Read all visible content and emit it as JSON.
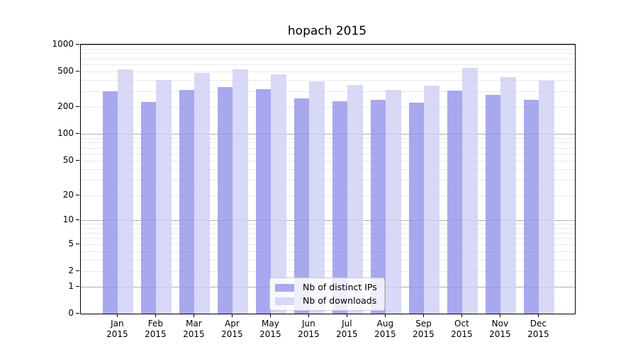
{
  "chart_data": {
    "type": "bar",
    "title": "hopach 2015",
    "categories": [
      "Jan 2015",
      "Feb 2015",
      "Mar 2015",
      "Apr 2015",
      "May 2015",
      "Jun 2015",
      "Jul 2015",
      "Aug 2015",
      "Sep 2015",
      "Oct 2015",
      "Nov 2015",
      "Dec 2015"
    ],
    "series": [
      {
        "name": "Nb of distinct IPs",
        "color": "#a8a8ef",
        "fill": "rgba(146,146,235,0.8)",
        "values": [
          300,
          230,
          312,
          334,
          320,
          250,
          234,
          242,
          224,
          308,
          277,
          242
        ]
      },
      {
        "name": "Nb of downloads",
        "color": "#d8d8f7",
        "fill": "rgba(206,206,245,0.8)",
        "values": [
          530,
          400,
          486,
          528,
          464,
          392,
          356,
          313,
          351,
          552,
          432,
          399
        ]
      }
    ],
    "y_axis": {
      "scale": "log1p",
      "ticks": [
        0,
        1,
        2,
        5,
        10,
        20,
        50,
        100,
        200,
        500,
        1000
      ],
      "ylim": [
        0,
        1100
      ]
    },
    "x_axis": {
      "label_year": "2015"
    },
    "grid": {
      "horizontal": true,
      "minor_color": "#e9e9e9",
      "major_color": "#b0b0b0"
    },
    "legend": {
      "position": "lower-center"
    }
  }
}
